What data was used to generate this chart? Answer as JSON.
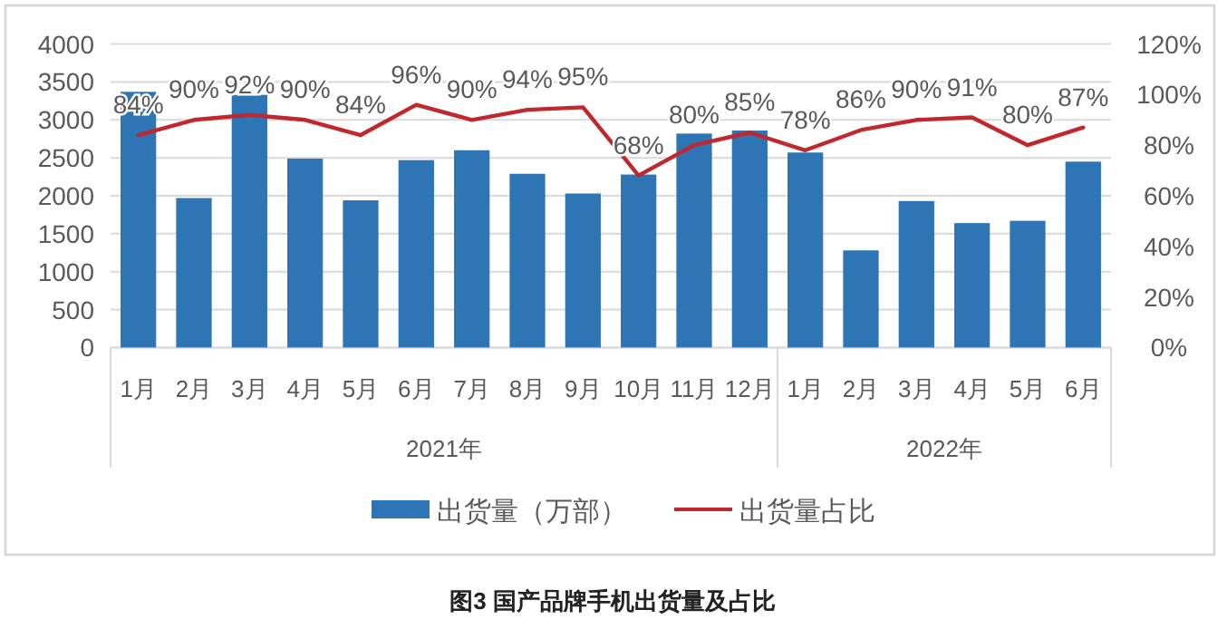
{
  "chart_data": {
    "type": "bar",
    "title": "图3   国产品牌手机出货量及占比",
    "categories": [
      "1月",
      "2月",
      "3月",
      "4月",
      "5月",
      "6月",
      "7月",
      "8月",
      "9月",
      "10月",
      "11月",
      "12月",
      "1月",
      "2月",
      "3月",
      "4月",
      "5月",
      "6月"
    ],
    "series": [
      {
        "name": "出货量（万部）",
        "color": "#2e75b6",
        "values": [
          3370,
          1970,
          3330,
          2490,
          1940,
          2470,
          2600,
          2290,
          2030,
          2280,
          2820,
          2860,
          2570,
          1280,
          1930,
          1640,
          1670,
          2450
        ]
      },
      {
        "name": "出货量占比",
        "type": "line",
        "axis": "y2",
        "color": "#c0282d",
        "values": [
          84,
          90,
          92,
          90,
          84,
          96,
          90,
          94,
          95,
          68,
          80,
          85,
          78,
          86,
          90,
          91,
          80,
          87
        ],
        "value_labels": [
          "84%",
          "90%",
          "92%",
          "90%",
          "84%",
          "96%",
          "90%",
          "94%",
          "95%",
          "68%",
          "80%",
          "85%",
          "78%",
          "86%",
          "90%",
          "91%",
          "80%",
          "87%"
        ]
      }
    ],
    "ylim": [
      0,
      4000
    ],
    "yticks": [
      0,
      500,
      1000,
      1500,
      2000,
      2500,
      3000,
      3500,
      4000
    ],
    "y2lim": [
      0,
      120
    ],
    "y2ticks": [
      {
        "value": 0,
        "label": "0%"
      },
      {
        "value": 20,
        "label": "20%"
      },
      {
        "value": 40,
        "label": "40%"
      },
      {
        "value": 60,
        "label": "60%"
      },
      {
        "value": 80,
        "label": "80%"
      },
      {
        "value": 100,
        "label": "100%"
      },
      {
        "value": 120,
        "label": "120%"
      }
    ],
    "grid": "y",
    "legend": "bottom",
    "annotations": [
      "2021年",
      "2022年"
    ]
  }
}
